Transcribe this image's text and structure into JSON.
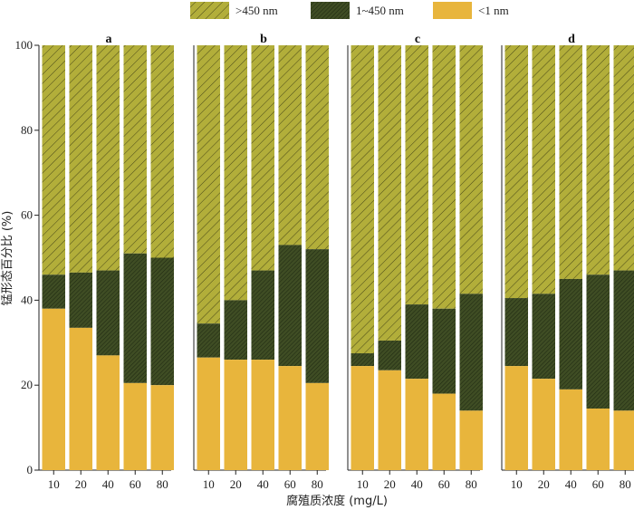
{
  "chart_data": {
    "type": "bar",
    "stacked": true,
    "xlabel": "腐殖质浓度 (mg/L)",
    "ylabel": "锰形态百分比 (%)",
    "ylim": [
      0,
      100
    ],
    "yticks": [
      "0",
      "20",
      "40",
      "60",
      "80",
      "100"
    ],
    "categories": [
      "10",
      "20",
      "40",
      "60",
      "80"
    ],
    "legend": {
      "placement": "top",
      "items": [
        {
          "label": ">450 nm",
          "series": "s450"
        },
        {
          "label": "1~450 nm",
          "series": "s1_450"
        },
        {
          "label": "<1 nm",
          "series": "s1"
        }
      ]
    },
    "colors": {
      "s450": "#b2ae3a",
      "s1_450": "#3f4d24",
      "s1": "#e8b53c",
      "hatch": "#4a4a18"
    },
    "panels": [
      {
        "label": "a",
        "lt1": [
          38,
          33.5,
          27,
          20.5,
          20
        ],
        "lt450_cum": [
          46,
          46.5,
          47,
          51,
          50
        ]
      },
      {
        "label": "b",
        "lt1": [
          26.5,
          26,
          26,
          24.5,
          20.5
        ],
        "lt450_cum": [
          34.5,
          40,
          47,
          53,
          52
        ]
      },
      {
        "label": "c",
        "lt1": [
          24.5,
          23.5,
          21.5,
          18,
          14
        ],
        "lt450_cum": [
          27.5,
          30.5,
          39,
          38,
          41.5
        ]
      },
      {
        "label": "d",
        "lt1": [
          24.5,
          21.5,
          19,
          14.5,
          14
        ],
        "lt450_cum": [
          40.5,
          41.5,
          45,
          46,
          47
        ]
      }
    ]
  }
}
